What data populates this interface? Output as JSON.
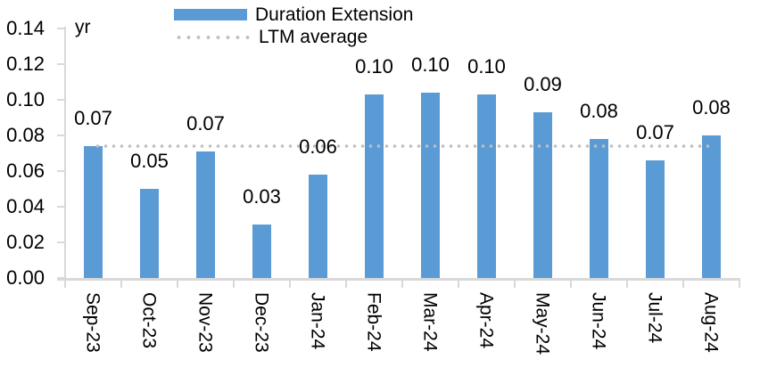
{
  "chart_data": {
    "type": "bar",
    "title": "",
    "y_unit": "yr",
    "categories": [
      "Sep-23",
      "Oct-23",
      "Nov-23",
      "Dec-23",
      "Jan-24",
      "Feb-24",
      "Mar-24",
      "Apr-24",
      "May-24",
      "Jun-24",
      "Jul-24",
      "Aug-24"
    ],
    "series": [
      {
        "name": "Duration Extension",
        "type": "bar",
        "color": "#5B9BD5",
        "values": [
          0.074,
          0.05,
          0.071,
          0.03,
          0.058,
          0.103,
          0.104,
          0.103,
          0.093,
          0.078,
          0.066,
          0.08
        ],
        "data_labels": [
          "0.07",
          "0.05",
          "0.07",
          "0.03",
          "0.06",
          "0.10",
          "0.10",
          "0.10",
          "0.09",
          "0.08",
          "0.07",
          "0.08"
        ]
      },
      {
        "name": "LTM average",
        "type": "line",
        "line_style": "dotted",
        "color": "#BFBFBF",
        "value": 0.074
      }
    ],
    "ylim": [
      0,
      0.14
    ],
    "ytick_step": 0.02,
    "ytick_labels": [
      "0.00",
      "0.02",
      "0.04",
      "0.06",
      "0.08",
      "0.10",
      "0.12",
      "0.14"
    ],
    "grid": false,
    "legend_position": "top-center",
    "axis_color": "#D9D9D9",
    "text_color": "#000000",
    "background_color": "#FFFFFF"
  }
}
